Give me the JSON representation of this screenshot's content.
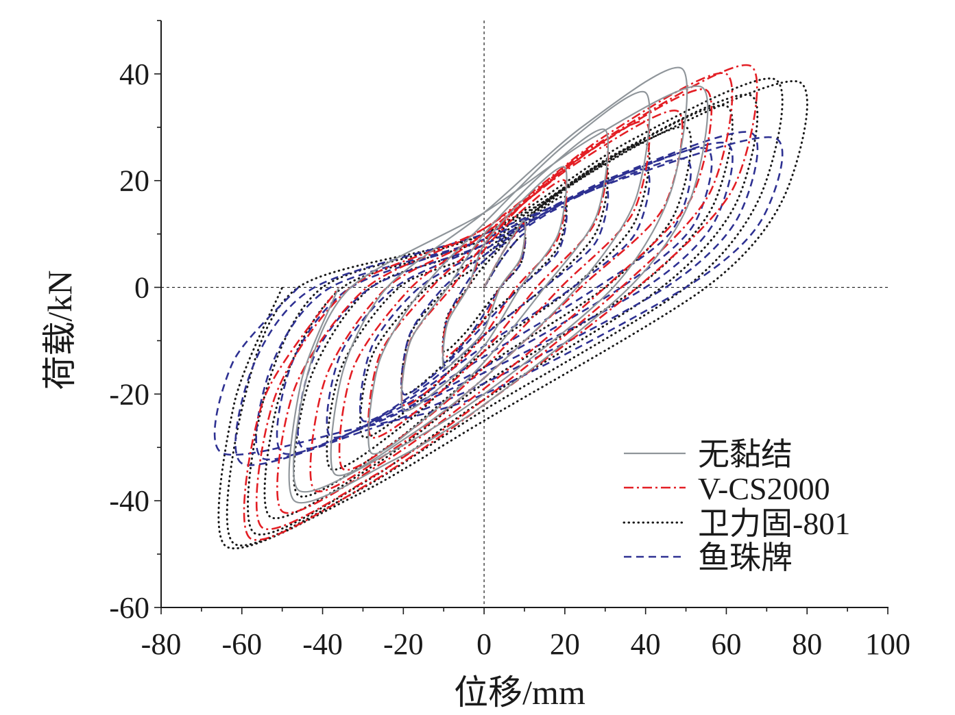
{
  "chart_data": {
    "type": "line",
    "xlabel": "位移/mm",
    "ylabel": "荷载/kN",
    "xlim": [
      -80,
      100
    ],
    "ylim": [
      -60,
      50
    ],
    "xticks": [
      -80,
      -60,
      -40,
      -20,
      0,
      20,
      40,
      60,
      80,
      100
    ],
    "yticks": [
      -60,
      -40,
      -20,
      0,
      20,
      40
    ],
    "xminor": 10,
    "yminor": 10,
    "reference_lines": {
      "x": 0,
      "y": 0
    },
    "grid": false,
    "legend": "bottom-right",
    "series": [
      {
        "name": "无黏结",
        "color": "#8f959a",
        "line_style": "solid",
        "x": [
          0,
          5,
          10,
          9.1,
          4,
          0,
          -5,
          -10,
          -9.1,
          -4,
          0,
          10,
          20,
          18.4,
          9,
          0,
          -10,
          -20,
          -18.4,
          -9,
          0,
          15,
          30,
          27.8,
          15,
          0,
          -14,
          -28,
          -26,
          -15,
          0,
          20,
          40,
          37.5,
          23,
          0,
          -18.5,
          -37,
          -35,
          -24,
          0,
          24.5,
          49,
          46.5,
          32,
          0,
          -23,
          -46,
          -44,
          -33,
          0,
          27,
          54,
          51.3,
          36,
          0,
          -23.5,
          -47,
          -45.4,
          -36
        ],
        "y": [
          0,
          7,
          12.5,
          5.6,
          0,
          -8,
          -12.2,
          -15,
          -6.8,
          0,
          8,
          16.7,
          22.5,
          10.1,
          0,
          -11,
          -18.2,
          -23,
          -10.4,
          0,
          10,
          21.7,
          29.5,
          13.3,
          0,
          -14,
          -24.2,
          -31,
          -14,
          0,
          12,
          26.7,
          36.5,
          16.4,
          0,
          -17,
          -27.8,
          -35,
          -15.8,
          0,
          14,
          30.2,
          41,
          18.5,
          0,
          -20,
          -30.8,
          -38,
          -17.1,
          0,
          14,
          28.1,
          37.5,
          16.9,
          0,
          -22,
          -32.8,
          -40,
          -18,
          0
        ]
      },
      {
        "name": "V-CS2000",
        "color": "#e31e24",
        "line_style": "dash-dot",
        "x": [
          0,
          5,
          10,
          9.1,
          4,
          0,
          -5,
          -10,
          -9.1,
          -4,
          0,
          10,
          20,
          18.2,
          8,
          0,
          -10,
          -20,
          -18.2,
          -8,
          0,
          15,
          30,
          27.5,
          13,
          0,
          -14,
          -28,
          -25.8,
          -13,
          0,
          20,
          40,
          36.9,
          19,
          0,
          -17.5,
          -35,
          -32.5,
          -18,
          0,
          24,
          48,
          44.4,
          24,
          0,
          -21,
          -42,
          -39.3,
          -24,
          0,
          27.5,
          55,
          51.3,
          30,
          0,
          -25,
          -50,
          -46.9,
          -29,
          0,
          30,
          60,
          56.1,
          34,
          0,
          -27.5,
          -55,
          -51.7,
          -33,
          0,
          33,
          66,
          61.8,
          38,
          0,
          -29,
          -58,
          -54.7,
          -36
        ],
        "y": [
          0,
          7,
          12,
          5.4,
          0,
          -6,
          -10.2,
          -13,
          -5.9,
          0,
          7,
          14.8,
          20,
          9,
          0,
          -9,
          -16.8,
          -22,
          -9.9,
          0,
          8,
          19.4,
          27,
          12.2,
          0,
          -12,
          -21.6,
          -28,
          -12.6,
          0,
          9,
          22.2,
          31,
          14,
          0,
          -15,
          -26.4,
          -34,
          -15.3,
          0,
          10,
          23.8,
          33,
          14.9,
          0,
          -17,
          -29.6,
          -38,
          -17.1,
          0,
          10,
          26.2,
          37,
          16.7,
          0,
          -19,
          -32.8,
          -42,
          -18.9,
          0,
          11,
          28.4,
          40,
          18,
          0,
          -21,
          -35.4,
          -45,
          -20.3,
          0,
          11,
          29.3,
          41.5,
          18.7,
          0,
          -22,
          -37,
          -47,
          -21.2,
          0
        ]
      },
      {
        "name": "卫力固-801",
        "color": "#1a1a1a",
        "line_style": "dotted",
        "x": [
          0,
          5,
          10,
          9.1,
          4,
          0,
          -5,
          -10,
          -9.1,
          -4,
          0,
          10,
          20,
          18.4,
          9,
          0,
          -10,
          -20,
          -18.4,
          -9,
          0,
          15,
          30,
          27.8,
          15,
          0,
          -15,
          -30,
          -27.6,
          -14,
          0,
          20,
          40,
          37.3,
          22,
          0,
          -19,
          -38,
          -35.5,
          -21,
          0,
          25,
          50,
          47,
          30,
          0,
          -23,
          -46,
          -43.3,
          -28,
          0,
          30,
          60,
          56.7,
          38,
          0,
          -26.5,
          -53,
          -50.3,
          -35,
          0,
          33,
          66,
          62.7,
          44,
          0,
          -28.5,
          -57,
          -54.5,
          -40,
          0,
          36,
          72,
          68.7,
          50,
          0,
          -31,
          -62,
          -59.6,
          -46,
          0,
          39,
          78,
          74.5,
          55,
          0,
          -32,
          -64,
          -61.9,
          -50
        ],
        "y": [
          0,
          6,
          10,
          4.5,
          0,
          -4,
          -8.8,
          -12,
          -5.4,
          0,
          4,
          11.8,
          17,
          7.7,
          0,
          -6,
          -14.4,
          -20,
          -9,
          0,
          5,
          15.8,
          23,
          10.4,
          0,
          -9,
          -20.4,
          -28,
          -12.6,
          0,
          6,
          18.6,
          27,
          12.2,
          0,
          -12,
          -25.2,
          -34,
          -15.3,
          0,
          7,
          20.8,
          30,
          13.5,
          0,
          -15,
          -29.4,
          -39,
          -17.6,
          0,
          8,
          23.6,
          34,
          15.3,
          0,
          -18,
          -33,
          -43,
          -19.4,
          0,
          9,
          25.2,
          36,
          16.2,
          0,
          -21,
          -36,
          -46,
          -20.7,
          0,
          10,
          27.4,
          39,
          17.6,
          0,
          -23,
          -38,
          -48,
          -21.6,
          0,
          10,
          27.1,
          38.5,
          17.3,
          0,
          -25,
          -39.1,
          -48.5,
          -21.8,
          0
        ]
      },
      {
        "name": "鱼珠牌",
        "color": "#2e3192",
        "line_style": "dashed",
        "x": [
          0,
          5,
          10,
          9.1,
          4,
          0,
          -5,
          -10,
          -9.3,
          -5,
          0,
          10,
          20,
          18.4,
          9,
          0,
          -10,
          -20,
          -18.5,
          -10,
          0,
          15,
          30,
          27.8,
          15,
          0,
          -15,
          -30,
          -27.9,
          -16,
          0,
          20,
          40,
          37.3,
          22,
          0,
          -19,
          -38,
          -35.6,
          -22,
          0,
          25,
          50,
          46.7,
          28,
          0,
          -22.5,
          -45,
          -42.4,
          -28,
          0,
          27.5,
          55,
          51.9,
          34,
          0,
          -25,
          -50,
          -47.5,
          -33,
          0,
          30,
          60,
          57,
          40,
          0,
          -27.5,
          -55,
          -52.5,
          -38,
          0,
          33,
          66,
          62.9,
          45,
          0,
          -30,
          -60,
          -57.3,
          -42,
          0,
          36,
          72,
          68.7,
          50,
          0,
          -32.5,
          -65,
          -62.2,
          -46
        ],
        "y": [
          0,
          6,
          10,
          4.5,
          0,
          -5,
          -10.4,
          -14,
          -6.3,
          0,
          5,
          11,
          15,
          6.8,
          0,
          -7,
          -14.8,
          -20,
          -9,
          0,
          6,
          13.8,
          19,
          8.6,
          0,
          -9,
          -18.6,
          -25,
          -11.3,
          0,
          7,
          16,
          22,
          9.9,
          0,
          -11,
          -21.2,
          -28,
          -12.6,
          0,
          8,
          17.6,
          24,
          10.8,
          0,
          -13,
          -23.2,
          -30,
          -13.5,
          0,
          8,
          18.8,
          26,
          11.7,
          0,
          -15,
          -24.6,
          -31,
          -14,
          0,
          9,
          19.8,
          27,
          12.2,
          0,
          -16,
          -25.6,
          -32,
          -14.4,
          0,
          9,
          21,
          29,
          13.1,
          0,
          -18,
          -27,
          -33,
          -14.9,
          0,
          10,
          20.8,
          28,
          12.6,
          0,
          -20,
          -26.6,
          -31,
          -14,
          0
        ]
      }
    ]
  }
}
